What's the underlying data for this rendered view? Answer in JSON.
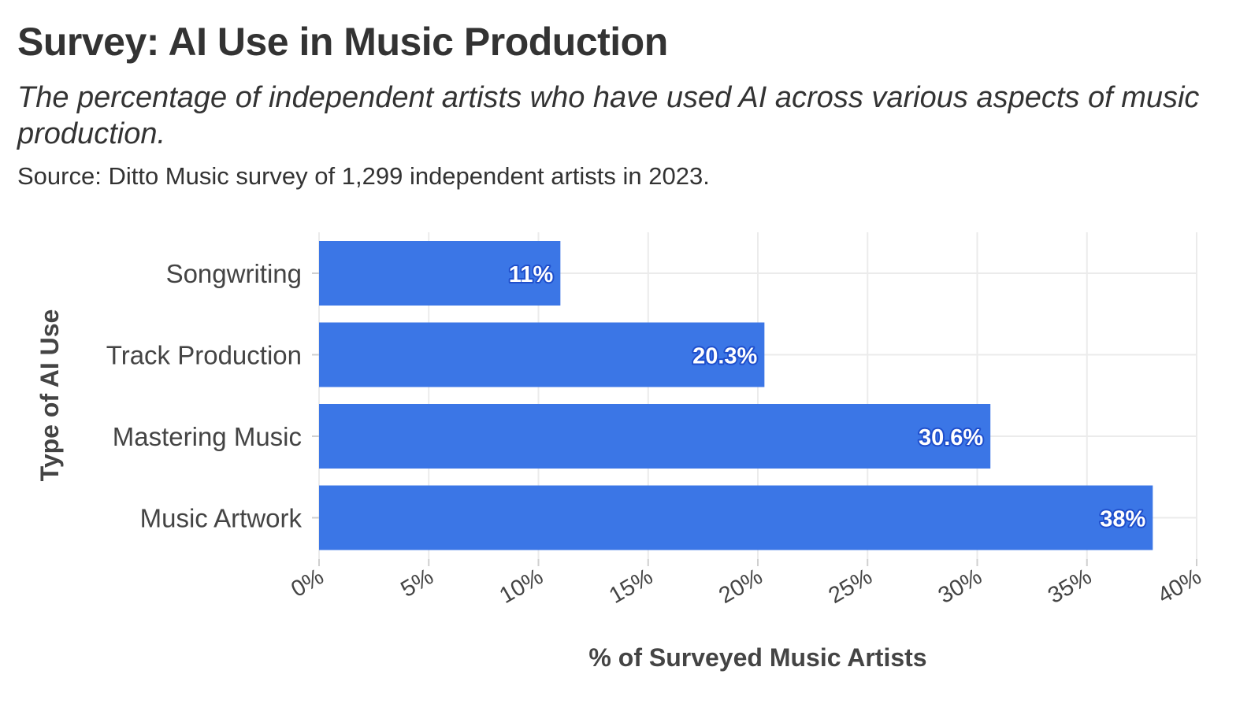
{
  "title": "Survey: AI Use in Music Production",
  "subtitle": "The percentage of independent artists who have used AI across various aspects of music production.",
  "caption": "Source: Ditto Music survey of 1,299 independent artists in 2023.",
  "colors": {
    "bar": "#3b76e6",
    "grid": "#ebebeb",
    "text": "#444444"
  },
  "chart_data": {
    "type": "bar",
    "orientation": "horizontal",
    "categories": [
      "Songwriting",
      "Track Production",
      "Mastering Music",
      "Music Artwork"
    ],
    "values": [
      11,
      20.3,
      30.6,
      38
    ],
    "labels": [
      "11%",
      "20.3%",
      "30.6%",
      "38%"
    ],
    "xlabel": "% of Surveyed Music Artists",
    "ylabel": "Type of AI Use",
    "xlim": [
      0,
      40
    ],
    "xticks": [
      0,
      5,
      10,
      15,
      20,
      25,
      30,
      35,
      40
    ],
    "xtick_labels": [
      "0%",
      "5%",
      "10%",
      "15%",
      "20%",
      "25%",
      "30%",
      "35%",
      "40%"
    ],
    "grid": true,
    "legend": "none"
  }
}
